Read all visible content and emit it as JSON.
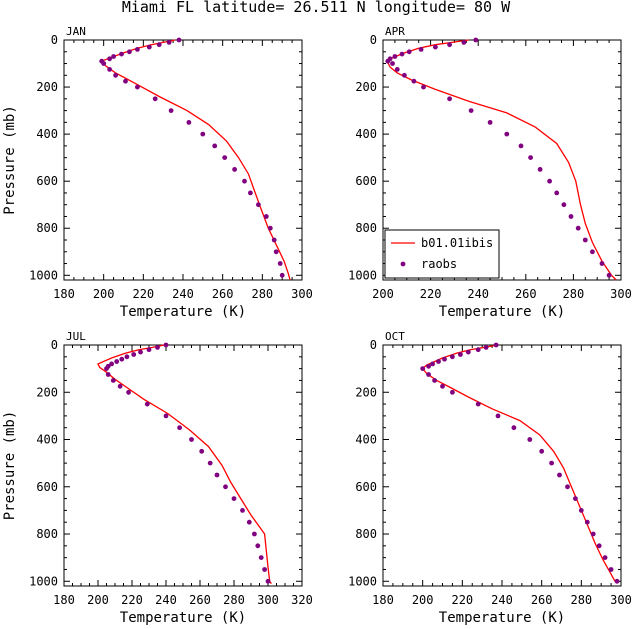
{
  "title": "Miami FL  latitude= 26.511 N longitude= 80 W",
  "colors": {
    "model": "#ff0000",
    "obs": "#800080",
    "axis": "#000000"
  },
  "legend": {
    "model_label": "b01.01ibis",
    "obs_label": "raobs",
    "placement": "bottom-left of APR panel"
  },
  "chart_data": [
    {
      "type": "line",
      "panel": "JAN",
      "xlabel": "Temperature (K)",
      "ylabel": "Pressure (mb)",
      "xlim": [
        180,
        300
      ],
      "ylim": [
        1020,
        0
      ],
      "xticks": [
        180,
        200,
        220,
        240,
        260,
        280,
        300
      ],
      "yticks": [
        0,
        200,
        400,
        600,
        800,
        1000
      ],
      "series": [
        {
          "name": "b01.01ibis",
          "points": [
            [
              236,
              0
            ],
            [
              230,
              10
            ],
            [
              224,
              20
            ],
            [
              217,
              35
            ],
            [
              210,
              55
            ],
            [
              202,
              80
            ],
            [
              199,
              90
            ],
            [
              201,
              110
            ],
            [
              206,
              140
            ],
            [
              215,
              180
            ],
            [
              228,
              240
            ],
            [
              242,
              300
            ],
            [
              253,
              360
            ],
            [
              262,
              430
            ],
            [
              268,
              500
            ],
            [
              273,
              570
            ],
            [
              276,
              640
            ],
            [
              279,
              710
            ],
            [
              283,
              800
            ],
            [
              287,
              870
            ],
            [
              291,
              940
            ],
            [
              293,
              990
            ],
            [
              294,
              1020
            ]
          ]
        },
        {
          "name": "raobs",
          "points": [
            [
              238,
              0
            ],
            [
              233,
              10
            ],
            [
              228,
              20
            ],
            [
              223,
              30
            ],
            [
              217,
              40
            ],
            [
              213,
              50
            ],
            [
              209,
              60
            ],
            [
              205,
              70
            ],
            [
              203,
              80
            ],
            [
              199,
              90
            ],
            [
              200,
              100
            ],
            [
              203,
              125
            ],
            [
              206,
              150
            ],
            [
              211,
              175
            ],
            [
              217,
              200
            ],
            [
              226,
              250
            ],
            [
              234,
              300
            ],
            [
              243,
              350
            ],
            [
              250,
              400
            ],
            [
              256,
              450
            ],
            [
              261,
              500
            ],
            [
              266,
              550
            ],
            [
              271,
              600
            ],
            [
              274,
              650
            ],
            [
              278,
              700
            ],
            [
              282,
              750
            ],
            [
              284,
              800
            ],
            [
              286,
              850
            ],
            [
              287,
              900
            ],
            [
              289,
              950
            ],
            [
              290,
              1000
            ]
          ]
        }
      ]
    },
    {
      "type": "line",
      "panel": "APR",
      "xlabel": "Temperature (K)",
      "ylabel": "",
      "xlim": [
        200,
        300
      ],
      "ylim": [
        1020,
        0
      ],
      "xticks": [
        200,
        220,
        240,
        260,
        280,
        300
      ],
      "yticks": [
        0,
        200,
        400,
        600,
        800,
        1000
      ],
      "series": [
        {
          "name": "b01.01ibis",
          "points": [
            [
              236,
              0
            ],
            [
              229,
              10
            ],
            [
              222,
              20
            ],
            [
              215,
              35
            ],
            [
              209,
              55
            ],
            [
              203,
              80
            ],
            [
              202,
              95
            ],
            [
              203,
              115
            ],
            [
              206,
              140
            ],
            [
              212,
              170
            ],
            [
              222,
              210
            ],
            [
              236,
              260
            ],
            [
              252,
              310
            ],
            [
              264,
              370
            ],
            [
              273,
              440
            ],
            [
              278,
              520
            ],
            [
              281,
              600
            ],
            [
              283,
              700
            ],
            [
              285,
              780
            ],
            [
              288,
              860
            ],
            [
              292,
              940
            ],
            [
              296,
              1000
            ],
            [
              298,
              1020
            ]
          ]
        },
        {
          "name": "raobs",
          "points": [
            [
              239,
              0
            ],
            [
              234,
              10
            ],
            [
              228,
              20
            ],
            [
              222,
              30
            ],
            [
              216,
              40
            ],
            [
              211,
              50
            ],
            [
              208,
              60
            ],
            [
              205,
              70
            ],
            [
              203,
              80
            ],
            [
              202,
              90
            ],
            [
              204,
              100
            ],
            [
              206,
              125
            ],
            [
              209,
              150
            ],
            [
              213,
              175
            ],
            [
              217,
              200
            ],
            [
              228,
              250
            ],
            [
              237,
              300
            ],
            [
              245,
              350
            ],
            [
              252,
              400
            ],
            [
              258,
              450
            ],
            [
              262,
              500
            ],
            [
              266,
              550
            ],
            [
              270,
              600
            ],
            [
              273,
              650
            ],
            [
              276,
              700
            ],
            [
              279,
              750
            ],
            [
              282,
              800
            ],
            [
              285,
              850
            ],
            [
              288,
              900
            ],
            [
              292,
              950
            ],
            [
              295,
              1000
            ]
          ]
        }
      ]
    },
    {
      "type": "line",
      "panel": "JUL",
      "xlabel": "Temperature (K)",
      "ylabel": "Pressure (mb)",
      "xlim": [
        180,
        320
      ],
      "ylim": [
        1020,
        0
      ],
      "xticks": [
        180,
        200,
        220,
        240,
        260,
        280,
        300,
        320
      ],
      "yticks": [
        0,
        200,
        400,
        600,
        800,
        1000
      ],
      "series": [
        {
          "name": "b01.01ibis",
          "points": [
            [
              239,
              0
            ],
            [
              232,
              10
            ],
            [
              224,
              20
            ],
            [
              216,
              35
            ],
            [
              208,
              55
            ],
            [
              200,
              80
            ],
            [
              201,
              95
            ],
            [
              205,
              115
            ],
            [
              210,
              145
            ],
            [
              217,
              180
            ],
            [
              227,
              230
            ],
            [
              241,
              290
            ],
            [
              254,
              360
            ],
            [
              265,
              430
            ],
            [
              273,
              510
            ],
            [
              278,
              580
            ],
            [
              284,
              650
            ],
            [
              290,
              720
            ],
            [
              298,
              800
            ],
            [
              299,
              870
            ],
            [
              300,
              940
            ],
            [
              301,
              1000
            ],
            [
              302,
              1010
            ]
          ]
        },
        {
          "name": "raobs",
          "points": [
            [
              240,
              0
            ],
            [
              235,
              10
            ],
            [
              230,
              20
            ],
            [
              225,
              30
            ],
            [
              221,
              40
            ],
            [
              217,
              50
            ],
            [
              214,
              60
            ],
            [
              211,
              70
            ],
            [
              208,
              80
            ],
            [
              206,
              90
            ],
            [
              205,
              100
            ],
            [
              206,
              125
            ],
            [
              209,
              150
            ],
            [
              213,
              175
            ],
            [
              218,
              200
            ],
            [
              229,
              250
            ],
            [
              240,
              300
            ],
            [
              248,
              350
            ],
            [
              255,
              400
            ],
            [
              261,
              450
            ],
            [
              266,
              500
            ],
            [
              270,
              550
            ],
            [
              275,
              600
            ],
            [
              280,
              650
            ],
            [
              285,
              700
            ],
            [
              289,
              750
            ],
            [
              292,
              800
            ],
            [
              294,
              850
            ],
            [
              296,
              900
            ],
            [
              298,
              950
            ],
            [
              300,
              1000
            ]
          ]
        }
      ]
    },
    {
      "type": "line",
      "panel": "OCT",
      "xlabel": "Temperature (K)",
      "ylabel": "",
      "xlim": [
        180,
        300
      ],
      "ylim": [
        1020,
        0
      ],
      "xticks": [
        180,
        200,
        220,
        240,
        260,
        280,
        300
      ],
      "yticks": [
        0,
        200,
        400,
        600,
        800,
        1000
      ],
      "series": [
        {
          "name": "b01.01ibis",
          "points": [
            [
              238,
              0
            ],
            [
              231,
              10
            ],
            [
              224,
              20
            ],
            [
              217,
              35
            ],
            [
              210,
              55
            ],
            [
              202,
              85
            ],
            [
              200,
              100
            ],
            [
              202,
              120
            ],
            [
              207,
              150
            ],
            [
              214,
              180
            ],
            [
              223,
              220
            ],
            [
              235,
              270
            ],
            [
              249,
              320
            ],
            [
              259,
              380
            ],
            [
              266,
              450
            ],
            [
              271,
              520
            ],
            [
              275,
              600
            ],
            [
              279,
              680
            ],
            [
              283,
              760
            ],
            [
              287,
              840
            ],
            [
              291,
              910
            ],
            [
              295,
              970
            ],
            [
              297,
              1000
            ]
          ]
        },
        {
          "name": "raobs",
          "points": [
            [
              237,
              0
            ],
            [
              232,
              10
            ],
            [
              228,
              20
            ],
            [
              223,
              30
            ],
            [
              219,
              40
            ],
            [
              215,
              50
            ],
            [
              211,
              60
            ],
            [
              208,
              70
            ],
            [
              205,
              80
            ],
            [
              203,
              90
            ],
            [
              200,
              100
            ],
            [
              203,
              125
            ],
            [
              206,
              150
            ],
            [
              210,
              175
            ],
            [
              215,
              200
            ],
            [
              228,
              250
            ],
            [
              238,
              300
            ],
            [
              246,
              350
            ],
            [
              254,
              400
            ],
            [
              260,
              450
            ],
            [
              265,
              500
            ],
            [
              269,
              550
            ],
            [
              273,
              600
            ],
            [
              277,
              650
            ],
            [
              280,
              700
            ],
            [
              283,
              750
            ],
            [
              286,
              800
            ],
            [
              289,
              850
            ],
            [
              292,
              900
            ],
            [
              295,
              950
            ],
            [
              298,
              1000
            ]
          ]
        }
      ]
    }
  ]
}
